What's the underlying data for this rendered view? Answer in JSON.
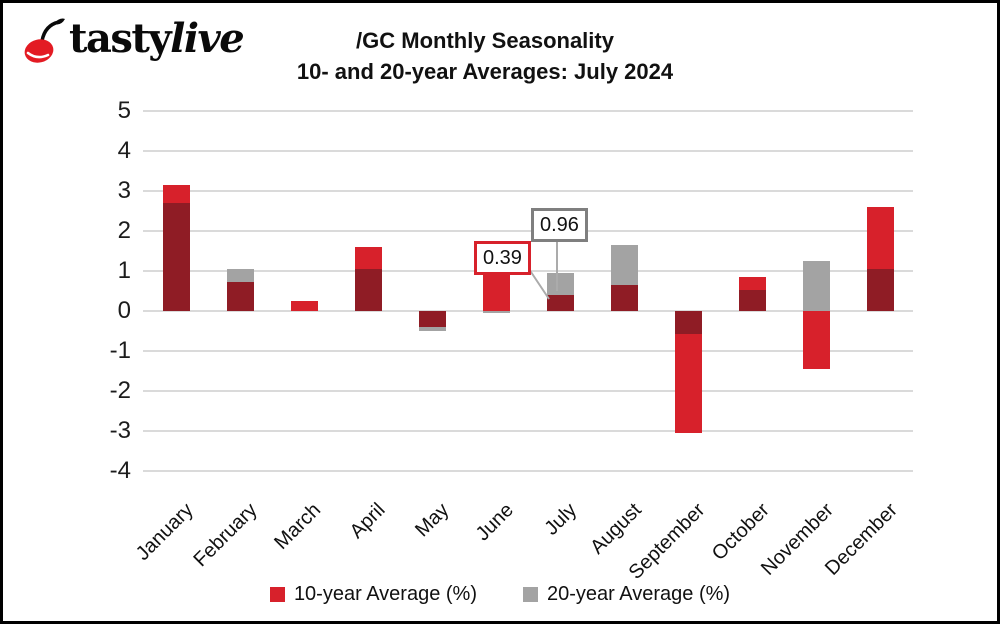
{
  "logo": {
    "brand_first": "tasty",
    "brand_second": "live",
    "cherry_color": "#E31B23"
  },
  "title": {
    "line1": "/GC Monthly Seasonality",
    "line2": "10- and 20-year Averages: July 2024"
  },
  "annotations": [
    {
      "text": "0.39",
      "border": "#D7212B",
      "target": "July 10-year Average"
    },
    {
      "text": "0.96",
      "border": "#7F7F7F",
      "target": "July 20-year Average"
    }
  ],
  "colors": {
    "red": "#D7212B",
    "gray": "#A3A3A3",
    "overlap": "#8F1C25",
    "gridline": "#DADADA"
  },
  "chart_data": {
    "type": "bar",
    "title": "/GC Monthly Seasonality 10- and 20-year Averages: July 2024",
    "categories": [
      "January",
      "February",
      "March",
      "April",
      "May",
      "June",
      "July",
      "August",
      "September",
      "October",
      "November",
      "December"
    ],
    "series": [
      {
        "name": "10-year Average (%)",
        "color": "#D7212B",
        "values": [
          3.15,
          0.73,
          0.25,
          1.6,
          -0.4,
          0.92,
          0.39,
          0.65,
          -3.05,
          0.85,
          -1.45,
          2.6
        ]
      },
      {
        "name": "20-year Average (%)",
        "color": "#A3A3A3",
        "values": [
          2.7,
          1.05,
          0,
          1.05,
          -0.5,
          -0.05,
          0.96,
          1.65,
          -0.57,
          0.52,
          1.25,
          1.05
        ]
      }
    ],
    "overlap_color": "#8F1C25",
    "xlabel": "",
    "ylabel": "",
    "ylim": [
      -4,
      5
    ],
    "yticks": [
      5,
      4,
      3,
      2,
      1,
      0,
      -1,
      -2,
      -3,
      -4
    ],
    "grid": true,
    "legend_position": "bottom",
    "bar_style": "overlapping"
  }
}
